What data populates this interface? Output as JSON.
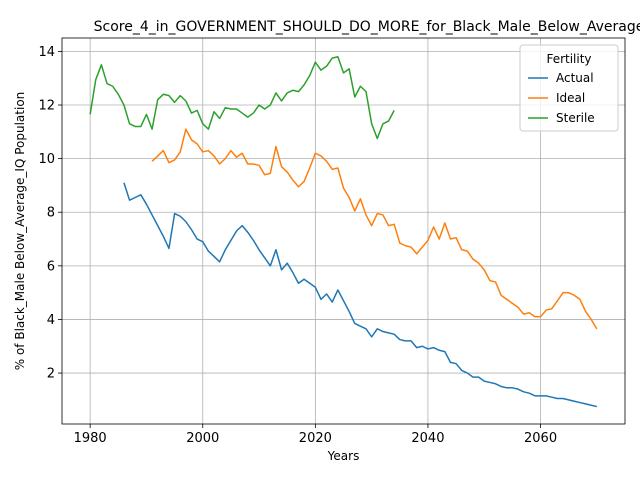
{
  "chart_data": {
    "type": "line",
    "title": "Score_4_in_GOVERNMENT_SHOULD_DO_MORE_for_Black_Male_Below_Average",
    "xlabel": "Years",
    "ylabel": "% of Black_Male Below_Average_IQ Population",
    "xlim": [
      1975,
      2075
    ],
    "ylim": [
      0.1,
      14.5
    ],
    "x_ticks": [
      1980,
      2000,
      2020,
      2040,
      2060
    ],
    "y_ticks": [
      2,
      4,
      6,
      8,
      10,
      12,
      14
    ],
    "grid": true,
    "legend": {
      "title": "Fertility",
      "position": "top-right"
    },
    "series": [
      {
        "name": "Actual",
        "color": "#1f77b4",
        "points": [
          [
            1986,
            9.1
          ],
          [
            1987,
            8.45
          ],
          [
            1988,
            8.55
          ],
          [
            1989,
            8.65
          ],
          [
            1990,
            8.3
          ],
          [
            1991,
            7.9
          ],
          [
            1992,
            7.5
          ],
          [
            1993,
            7.1
          ],
          [
            1994,
            6.65
          ],
          [
            1995,
            7.95
          ],
          [
            1996,
            7.85
          ],
          [
            1997,
            7.65
          ],
          [
            1998,
            7.35
          ],
          [
            1999,
            7.0
          ],
          [
            2000,
            6.9
          ],
          [
            2001,
            6.55
          ],
          [
            2002,
            6.35
          ],
          [
            2003,
            6.15
          ],
          [
            2004,
            6.6
          ],
          [
            2005,
            6.95
          ],
          [
            2006,
            7.3
          ],
          [
            2007,
            7.5
          ],
          [
            2008,
            7.25
          ],
          [
            2009,
            6.95
          ],
          [
            2010,
            6.6
          ],
          [
            2011,
            6.3
          ],
          [
            2012,
            6.0
          ],
          [
            2013,
            6.6
          ],
          [
            2014,
            5.85
          ],
          [
            2015,
            6.1
          ],
          [
            2016,
            5.75
          ],
          [
            2017,
            5.35
          ],
          [
            2018,
            5.5
          ],
          [
            2019,
            5.35
          ],
          [
            2020,
            5.2
          ],
          [
            2021,
            4.75
          ],
          [
            2022,
            4.95
          ],
          [
            2023,
            4.65
          ],
          [
            2024,
            5.1
          ],
          [
            2025,
            4.7
          ],
          [
            2026,
            4.3
          ],
          [
            2027,
            3.85
          ],
          [
            2028,
            3.75
          ],
          [
            2029,
            3.65
          ],
          [
            2030,
            3.35
          ],
          [
            2031,
            3.65
          ],
          [
            2032,
            3.55
          ],
          [
            2033,
            3.5
          ],
          [
            2034,
            3.45
          ],
          [
            2035,
            3.25
          ],
          [
            2036,
            3.2
          ],
          [
            2037,
            3.2
          ],
          [
            2038,
            2.95
          ],
          [
            2039,
            3.0
          ],
          [
            2040,
            2.9
          ],
          [
            2041,
            2.95
          ],
          [
            2042,
            2.85
          ],
          [
            2043,
            2.8
          ],
          [
            2044,
            2.4
          ],
          [
            2045,
            2.35
          ],
          [
            2046,
            2.1
          ],
          [
            2047,
            2.0
          ],
          [
            2048,
            1.85
          ],
          [
            2049,
            1.85
          ],
          [
            2050,
            1.7
          ],
          [
            2051,
            1.65
          ],
          [
            2052,
            1.6
          ],
          [
            2053,
            1.5
          ],
          [
            2054,
            1.45
          ],
          [
            2055,
            1.45
          ],
          [
            2056,
            1.4
          ],
          [
            2057,
            1.3
          ],
          [
            2058,
            1.25
          ],
          [
            2059,
            1.15
          ],
          [
            2060,
            1.15
          ],
          [
            2061,
            1.15
          ],
          [
            2062,
            1.1
          ],
          [
            2063,
            1.05
          ],
          [
            2064,
            1.05
          ],
          [
            2065,
            1.0
          ],
          [
            2066,
            0.95
          ],
          [
            2067,
            0.9
          ],
          [
            2068,
            0.85
          ],
          [
            2069,
            0.8
          ],
          [
            2070,
            0.75
          ]
        ]
      },
      {
        "name": "Ideal",
        "color": "#ff7f0e",
        "points": [
          [
            1991,
            9.9
          ],
          [
            1992,
            10.1
          ],
          [
            1993,
            10.3
          ],
          [
            1994,
            9.85
          ],
          [
            1995,
            9.95
          ],
          [
            1996,
            10.25
          ],
          [
            1997,
            11.1
          ],
          [
            1998,
            10.7
          ],
          [
            1999,
            10.55
          ],
          [
            2000,
            10.25
          ],
          [
            2001,
            10.3
          ],
          [
            2002,
            10.1
          ],
          [
            2003,
            9.8
          ],
          [
            2004,
            10.0
          ],
          [
            2005,
            10.3
          ],
          [
            2006,
            10.05
          ],
          [
            2007,
            10.2
          ],
          [
            2008,
            9.8
          ],
          [
            2009,
            9.8
          ],
          [
            2010,
            9.75
          ],
          [
            2011,
            9.4
          ],
          [
            2012,
            9.45
          ],
          [
            2013,
            10.45
          ],
          [
            2014,
            9.7
          ],
          [
            2015,
            9.5
          ],
          [
            2016,
            9.2
          ],
          [
            2017,
            8.95
          ],
          [
            2018,
            9.15
          ],
          [
            2019,
            9.65
          ],
          [
            2020,
            10.2
          ],
          [
            2021,
            10.1
          ],
          [
            2022,
            9.9
          ],
          [
            2023,
            9.6
          ],
          [
            2024,
            9.65
          ],
          [
            2025,
            8.9
          ],
          [
            2026,
            8.55
          ],
          [
            2027,
            8.05
          ],
          [
            2028,
            8.5
          ],
          [
            2029,
            7.9
          ],
          [
            2030,
            7.5
          ],
          [
            2031,
            7.95
          ],
          [
            2032,
            7.9
          ],
          [
            2033,
            7.5
          ],
          [
            2034,
            7.55
          ],
          [
            2035,
            6.85
          ],
          [
            2036,
            6.75
          ],
          [
            2037,
            6.7
          ],
          [
            2038,
            6.45
          ],
          [
            2039,
            6.7
          ],
          [
            2040,
            6.95
          ],
          [
            2041,
            7.45
          ],
          [
            2042,
            7.0
          ],
          [
            2043,
            7.6
          ],
          [
            2044,
            7.0
          ],
          [
            2045,
            7.05
          ],
          [
            2046,
            6.6
          ],
          [
            2047,
            6.55
          ],
          [
            2048,
            6.25
          ],
          [
            2049,
            6.1
          ],
          [
            2050,
            5.85
          ],
          [
            2051,
            5.45
          ],
          [
            2052,
            5.4
          ],
          [
            2053,
            4.9
          ],
          [
            2054,
            4.75
          ],
          [
            2055,
            4.6
          ],
          [
            2056,
            4.45
          ],
          [
            2057,
            4.2
          ],
          [
            2058,
            4.25
          ],
          [
            2059,
            4.1
          ],
          [
            2060,
            4.1
          ],
          [
            2061,
            4.35
          ],
          [
            2062,
            4.4
          ],
          [
            2063,
            4.7
          ],
          [
            2064,
            5.0
          ],
          [
            2065,
            5.0
          ],
          [
            2066,
            4.9
          ],
          [
            2067,
            4.75
          ],
          [
            2068,
            4.3
          ],
          [
            2069,
            4.0
          ],
          [
            2070,
            3.65
          ]
        ]
      },
      {
        "name": "Sterile",
        "color": "#2ca02c",
        "points": [
          [
            1980,
            11.65
          ],
          [
            1981,
            12.95
          ],
          [
            1982,
            13.5
          ],
          [
            1983,
            12.8
          ],
          [
            1984,
            12.7
          ],
          [
            1985,
            12.4
          ],
          [
            1986,
            12.0
          ],
          [
            1987,
            11.3
          ],
          [
            1988,
            11.2
          ],
          [
            1989,
            11.2
          ],
          [
            1990,
            11.65
          ],
          [
            1991,
            11.1
          ],
          [
            1992,
            12.2
          ],
          [
            1993,
            12.4
          ],
          [
            1994,
            12.35
          ],
          [
            1995,
            12.1
          ],
          [
            1996,
            12.35
          ],
          [
            1997,
            12.15
          ],
          [
            1998,
            11.7
          ],
          [
            1999,
            11.8
          ],
          [
            2000,
            11.3
          ],
          [
            2001,
            11.1
          ],
          [
            2002,
            11.75
          ],
          [
            2003,
            11.5
          ],
          [
            2004,
            11.9
          ],
          [
            2005,
            11.85
          ],
          [
            2006,
            11.85
          ],
          [
            2007,
            11.7
          ],
          [
            2008,
            11.55
          ],
          [
            2009,
            11.7
          ],
          [
            2010,
            12.0
          ],
          [
            2011,
            11.85
          ],
          [
            2012,
            12.0
          ],
          [
            2013,
            12.45
          ],
          [
            2014,
            12.15
          ],
          [
            2015,
            12.45
          ],
          [
            2016,
            12.55
          ],
          [
            2017,
            12.5
          ],
          [
            2018,
            12.75
          ],
          [
            2019,
            13.1
          ],
          [
            2020,
            13.6
          ],
          [
            2021,
            13.3
          ],
          [
            2022,
            13.45
          ],
          [
            2023,
            13.75
          ],
          [
            2024,
            13.8
          ],
          [
            2025,
            13.2
          ],
          [
            2026,
            13.35
          ],
          [
            2027,
            12.3
          ],
          [
            2028,
            12.7
          ],
          [
            2029,
            12.5
          ],
          [
            2030,
            11.3
          ],
          [
            2031,
            10.75
          ],
          [
            2032,
            11.3
          ],
          [
            2033,
            11.4
          ],
          [
            2034,
            11.8
          ]
        ]
      }
    ]
  }
}
